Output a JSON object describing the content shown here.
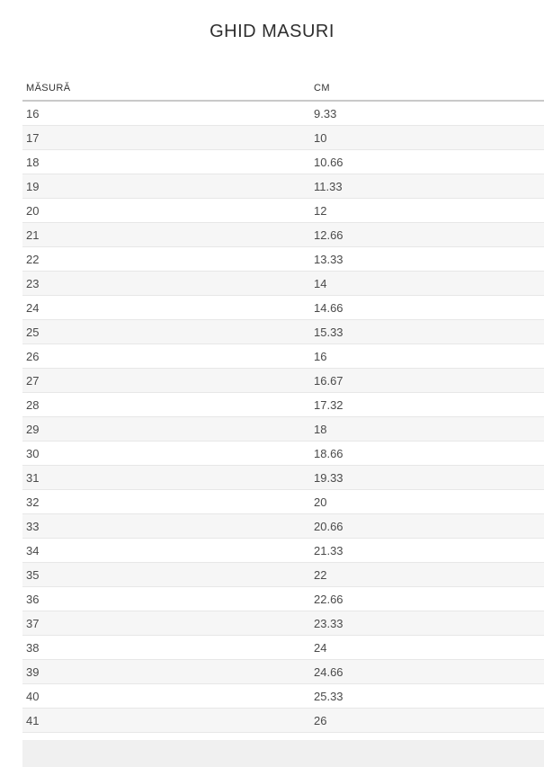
{
  "page": {
    "title": "GHID MASURI"
  },
  "colors": {
    "stripe": "#f6f6f6",
    "row_border": "#e7e7e7",
    "header_border": "#c9c9c9",
    "title_text": "#2e2e2e",
    "cell_text": "#4a4a4a"
  },
  "table": {
    "columns": [
      {
        "label": "MĂSURĂ"
      },
      {
        "label": "CM"
      }
    ],
    "rows": [
      {
        "size": "16",
        "cm": "9.33"
      },
      {
        "size": "17",
        "cm": "10"
      },
      {
        "size": "18",
        "cm": "10.66"
      },
      {
        "size": "19",
        "cm": "11.33"
      },
      {
        "size": "20",
        "cm": "12"
      },
      {
        "size": "21",
        "cm": "12.66"
      },
      {
        "size": "22",
        "cm": "13.33"
      },
      {
        "size": "23",
        "cm": "14"
      },
      {
        "size": "24",
        "cm": "14.66"
      },
      {
        "size": "25",
        "cm": "15.33"
      },
      {
        "size": "26",
        "cm": "16"
      },
      {
        "size": "27",
        "cm": "16.67"
      },
      {
        "size": "28",
        "cm": "17.32"
      },
      {
        "size": "29",
        "cm": "18"
      },
      {
        "size": "30",
        "cm": "18.66"
      },
      {
        "size": "31",
        "cm": "19.33"
      },
      {
        "size": "32",
        "cm": "20"
      },
      {
        "size": "33",
        "cm": "20.66"
      },
      {
        "size": "34",
        "cm": "21.33"
      },
      {
        "size": "35",
        "cm": "22"
      },
      {
        "size": "36",
        "cm": "22.66"
      },
      {
        "size": "37",
        "cm": "23.33"
      },
      {
        "size": "38",
        "cm": "24"
      },
      {
        "size": "39",
        "cm": "24.66"
      },
      {
        "size": "40",
        "cm": "25.33"
      },
      {
        "size": "41",
        "cm": "26"
      }
    ]
  }
}
